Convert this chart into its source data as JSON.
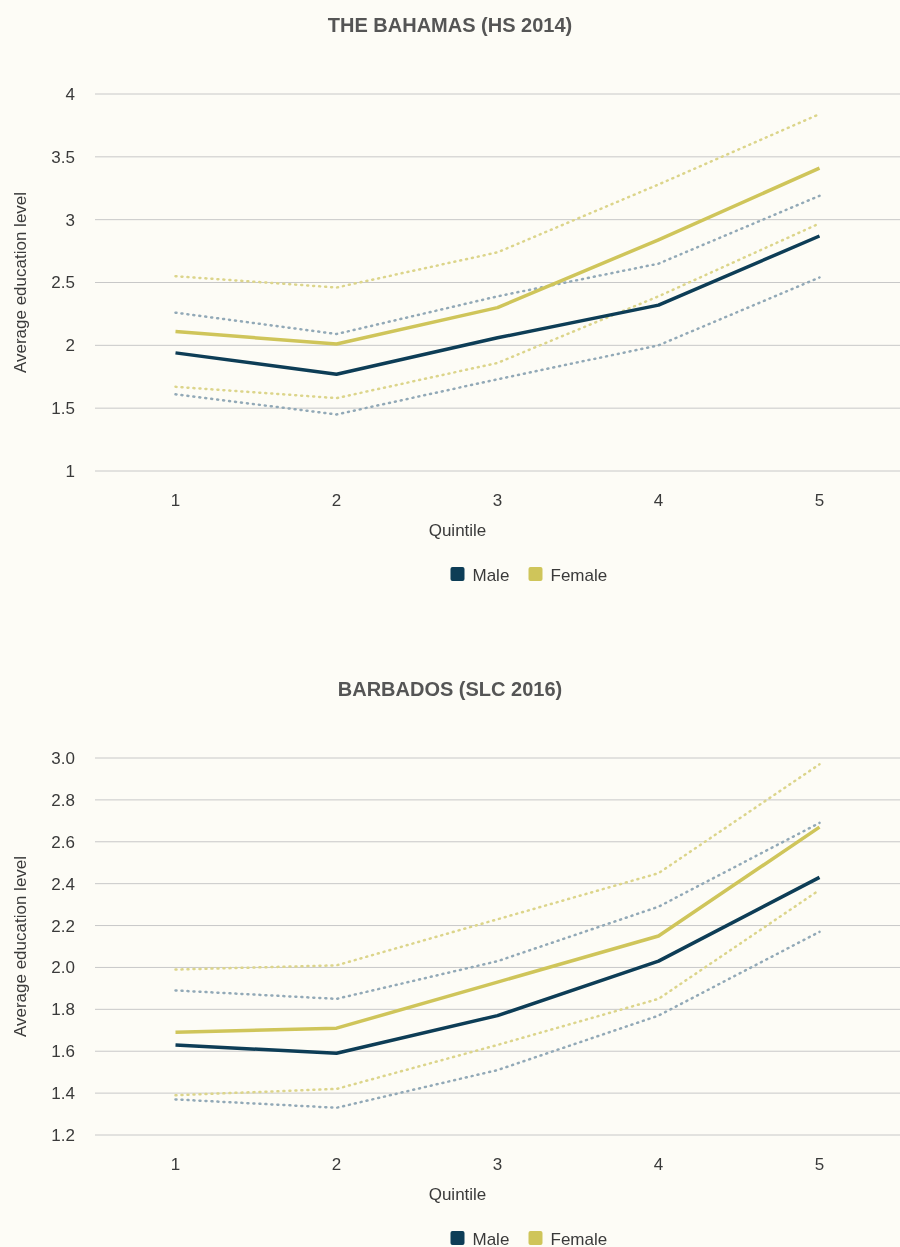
{
  "chart_data": [
    {
      "type": "line",
      "title": "THE BAHAMAS (HS 2014)",
      "xlabel": "Quintile",
      "ylabel": "Average education level",
      "categories": [
        "1",
        "2",
        "3",
        "4",
        "5"
      ],
      "ylim": [
        1,
        4
      ],
      "yticks": [
        1,
        1.5,
        2,
        2.5,
        3,
        3.5,
        4
      ],
      "grid": "y",
      "legend": "bottom",
      "series": [
        {
          "color": "#92a9b7",
          "line_style": "dotted",
          "values": [
            1.61,
            1.45,
            1.73,
            2.0,
            2.54
          ]
        },
        {
          "color": "#92a9b7",
          "line_style": "dotted",
          "values": [
            2.26,
            2.09,
            2.39,
            2.65,
            3.19
          ]
        },
        {
          "color": "#dcd58b",
          "line_style": "dotted",
          "values": [
            1.67,
            1.58,
            1.86,
            2.39,
            2.97
          ]
        },
        {
          "color": "#dcd58b",
          "line_style": "dotted",
          "values": [
            2.55,
            2.46,
            2.74,
            3.28,
            3.84
          ]
        },
        {
          "name": "Male",
          "color": "#0d3d56",
          "line_style": "solid",
          "values": [
            1.94,
            1.77,
            2.06,
            2.32,
            2.87
          ]
        },
        {
          "name": "Female",
          "color": "#cfc55a",
          "line_style": "solid",
          "values": [
            2.11,
            2.01,
            2.3,
            2.84,
            3.41
          ]
        }
      ]
    },
    {
      "type": "line",
      "title": "BARBADOS (SLC 2016)",
      "xlabel": "Quintile",
      "ylabel": "Average education level",
      "categories": [
        "1",
        "2",
        "3",
        "4",
        "5"
      ],
      "ylim": [
        1.2,
        3.0
      ],
      "yticks": [
        1.2,
        1.4,
        1.6,
        1.8,
        {
          "value": 2,
          "label": "2.0"
        },
        2.2,
        2.4,
        2.6,
        2.8,
        {
          "value": 3,
          "label": "3.0"
        }
      ],
      "grid": "y",
      "legend": "bottom",
      "series": [
        {
          "color": "#92a9b7",
          "line_style": "dotted",
          "values": [
            1.37,
            1.33,
            1.51,
            1.77,
            2.17
          ]
        },
        {
          "color": "#92a9b7",
          "line_style": "dotted",
          "values": [
            1.89,
            1.85,
            2.03,
            2.29,
            2.69
          ]
        },
        {
          "color": "#dcd58b",
          "line_style": "dotted",
          "values": [
            1.39,
            1.42,
            1.63,
            1.85,
            2.37
          ]
        },
        {
          "color": "#dcd58b",
          "line_style": "dotted",
          "values": [
            1.99,
            2.01,
            2.23,
            2.45,
            2.97
          ]
        },
        {
          "name": "Male",
          "color": "#0d3d56",
          "line_style": "solid",
          "values": [
            1.63,
            1.59,
            1.77,
            2.03,
            2.43
          ]
        },
        {
          "name": "Female",
          "color": "#cfc55a",
          "line_style": "solid",
          "values": [
            1.69,
            1.71,
            1.93,
            2.15,
            2.67
          ]
        }
      ]
    }
  ]
}
